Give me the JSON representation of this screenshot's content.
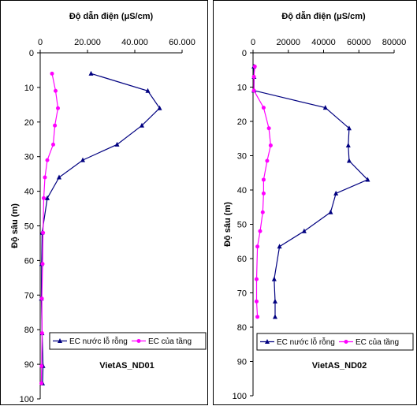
{
  "chart_data": [
    {
      "type": "line",
      "title": "VietAS_ND01",
      "xlabel": "Độ dẫn điện (μS/cm)",
      "ylabel": "Độ sâu (m)",
      "xlim": [
        0,
        60000
      ],
      "ylim": [
        0,
        100
      ],
      "xticks": [
        "0",
        "20.000",
        "40.000",
        "60.000"
      ],
      "yticks": [
        "0",
        "10",
        "20",
        "30",
        "40",
        "50",
        "60",
        "70",
        "80",
        "90",
        "100"
      ],
      "x_axis_position": "top",
      "y_inverted": true,
      "legend_position": "inside-lower",
      "grid": false,
      "series": [
        {
          "name": "EC nước lỗ rỗng",
          "color": "#000080",
          "marker": "triangle",
          "points": [
            [
              21500,
              6
            ],
            [
              45500,
              11
            ],
            [
              50500,
              16
            ],
            [
              43000,
              21
            ],
            [
              32500,
              26.5
            ],
            [
              18000,
              31
            ],
            [
              8000,
              36
            ],
            [
              3000,
              42
            ],
            [
              800,
              52
            ],
            [
              600,
              61
            ],
            [
              500,
              71
            ],
            [
              800,
              81
            ],
            [
              1200,
              90.5
            ],
            [
              1000,
              95.5
            ]
          ]
        },
        {
          "name": "EC của tầng",
          "color": "#FF00FF",
          "marker": "circle",
          "points": [
            [
              5000,
              6
            ],
            [
              6500,
              11
            ],
            [
              7500,
              16
            ],
            [
              6200,
              21
            ],
            [
              5500,
              26.5
            ],
            [
              3000,
              31
            ],
            [
              2000,
              36
            ],
            [
              1500,
              42
            ],
            [
              1200,
              52
            ],
            [
              1000,
              61
            ],
            [
              700,
              71
            ],
            [
              800,
              81
            ],
            [
              600,
              90.5
            ],
            [
              500,
              95.5
            ]
          ]
        }
      ]
    },
    {
      "type": "line",
      "title": "VietAS_ND02",
      "xlabel": "Độ dẫn điện (μS/cm)",
      "ylabel": "Độ sâu (m)",
      "xlim": [
        0,
        80000
      ],
      "ylim": [
        0,
        100
      ],
      "xticks": [
        "0",
        "20000",
        "40000",
        "60000",
        "80000"
      ],
      "yticks": [
        "0",
        "10",
        "20",
        "30",
        "40",
        "50",
        "60",
        "70",
        "80",
        "90",
        "100"
      ],
      "x_axis_position": "top",
      "y_inverted": true,
      "legend_position": "inside-lower",
      "grid": false,
      "series": [
        {
          "name": "EC nước lỗ rỗng",
          "color": "#000080",
          "marker": "triangle",
          "points": [
            [
              500,
              4
            ],
            [
              600,
              7
            ],
            [
              500,
              11
            ],
            [
              41000,
              16
            ],
            [
              54500,
              22
            ],
            [
              54000,
              27
            ],
            [
              54500,
              31.5
            ],
            [
              65000,
              37
            ],
            [
              47000,
              41
            ],
            [
              44000,
              46.5
            ],
            [
              29000,
              52
            ],
            [
              15000,
              56.5
            ],
            [
              12000,
              66
            ],
            [
              12500,
              72.5
            ],
            [
              12500,
              77
            ]
          ]
        },
        {
          "name": "EC của tầng",
          "color": "#FF00FF",
          "marker": "circle",
          "points": [
            [
              1000,
              4
            ],
            [
              500,
              7
            ],
            [
              500,
              11
            ],
            [
              6000,
              16
            ],
            [
              9000,
              22
            ],
            [
              10000,
              27
            ],
            [
              8000,
              31.5
            ],
            [
              6000,
              37
            ],
            [
              6000,
              41
            ],
            [
              5500,
              46.5
            ],
            [
              4000,
              52
            ],
            [
              2500,
              56.5
            ],
            [
              2000,
              66
            ],
            [
              2000,
              72.5
            ],
            [
              2500,
              77
            ]
          ]
        }
      ]
    }
  ]
}
